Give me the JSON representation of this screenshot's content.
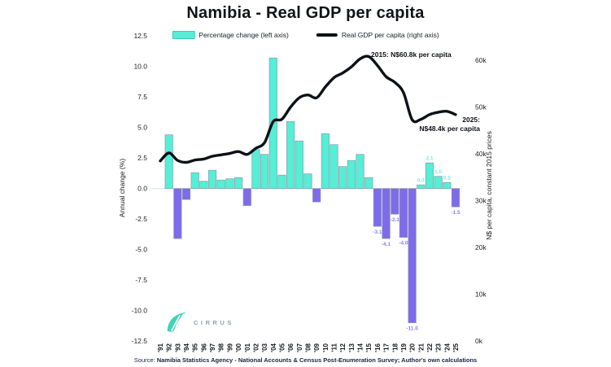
{
  "title": "Namibia - Real GDP per capita",
  "legend": {
    "bar_label": "Percentage change (left axis)",
    "line_label": "Real GDP per capita (right axis)"
  },
  "annotations": {
    "peak_2015": "2015: N$60.8k per capita",
    "end_2025_line1": "2025:",
    "end_2025_line2": "N$48.4k per capita"
  },
  "source": {
    "prefix": "Source: ",
    "text": "Namibia Statistics Agency - National Accounts & Census Post-Enumeration Survey; Author's own calculations"
  },
  "logo": {
    "name": "CIRRUS"
  },
  "colors": {
    "bar_positive": "#55eed6",
    "bar_negative": "#7d6beb",
    "bar_edge": "#8e9aa6",
    "bar_label_positive": "#76f0da",
    "bar_label_negative": "#8b7cf0",
    "line": "#0d1117",
    "zero_gridline": "#e4e7ea",
    "logo_accent": "#3ed4b8"
  },
  "chart_data": {
    "type": "combo bar+line, dual axis",
    "x": [
      "'91",
      "'92",
      "'93",
      "'94",
      "'95",
      "'96",
      "'97",
      "'98",
      "'99",
      "'00",
      "'01",
      "'02",
      "'03",
      "'04",
      "'05",
      "'06",
      "'07",
      "'08",
      "'09",
      "'10",
      "'11",
      "'12",
      "'13",
      "'14",
      "'15",
      "'16",
      "'17",
      "'18",
      "'19",
      "'20",
      "'21",
      "'22",
      "'23",
      "'24",
      "'25"
    ],
    "series": [
      {
        "name": "Percentage change (left axis)",
        "type": "bar",
        "axis": "left",
        "values": [
          null,
          4.4,
          -4.1,
          -0.9,
          1.3,
          0.6,
          1.5,
          0.7,
          0.8,
          0.9,
          -1.4,
          3.2,
          2.8,
          10.7,
          1.1,
          5.5,
          3.9,
          1.2,
          -1.1,
          4.5,
          3.6,
          1.8,
          2.3,
          2.8,
          0.9,
          -3.1,
          -4.1,
          -2.1,
          -4.0,
          -11.0,
          0.3,
          2.1,
          1.0,
          0.5,
          -1.5
        ],
        "point_labels": [
          null,
          null,
          null,
          null,
          null,
          null,
          null,
          null,
          null,
          null,
          null,
          null,
          null,
          null,
          null,
          null,
          null,
          null,
          null,
          null,
          null,
          null,
          null,
          null,
          null,
          "-3.1",
          "-4.1",
          "-2.1",
          "-4.0",
          "-11.0",
          "0.3",
          "2.1",
          "1.0",
          "0.5",
          "-1.5"
        ]
      },
      {
        "name": "Real GDP per capita (right axis)",
        "type": "line",
        "axis": "right",
        "unit": "N$ thousands",
        "values": [
          38.5,
          40.2,
          38.6,
          38.2,
          38.7,
          38.9,
          39.5,
          39.8,
          40.1,
          40.5,
          39.9,
          41.2,
          42.4,
          46.9,
          47.4,
          50.0,
          52.0,
          52.6,
          52.0,
          54.3,
          56.3,
          57.3,
          58.6,
          60.3,
          60.8,
          58.9,
          56.5,
          55.3,
          53.1,
          47.3,
          47.4,
          48.4,
          48.9,
          49.1,
          48.4
        ]
      }
    ],
    "left_axis": {
      "label": "Annual change (%)",
      "ticks": [
        "12.5",
        "10.0",
        "7.5",
        "5.0",
        "2.5",
        "0.0",
        "-2.5",
        "-5.0",
        "-7.5",
        "-10.0",
        "-12.5"
      ],
      "tick_values": [
        12.5,
        10,
        7.5,
        5,
        2.5,
        0,
        -2.5,
        -5,
        -7.5,
        -10,
        -12.5
      ],
      "range": [
        -12.5,
        12.5
      ]
    },
    "right_axis": {
      "label": "N$ per capita, constant 2015 prices",
      "ticks": [
        "60k",
        "50k",
        "40k",
        "30k",
        "20k",
        "10k",
        "0k"
      ],
      "tick_values": [
        60,
        50,
        40,
        30,
        20,
        10,
        0
      ],
      "range": [
        0,
        65.2
      ]
    },
    "grid": "horizontal zero line only",
    "legend_position": "top center"
  }
}
